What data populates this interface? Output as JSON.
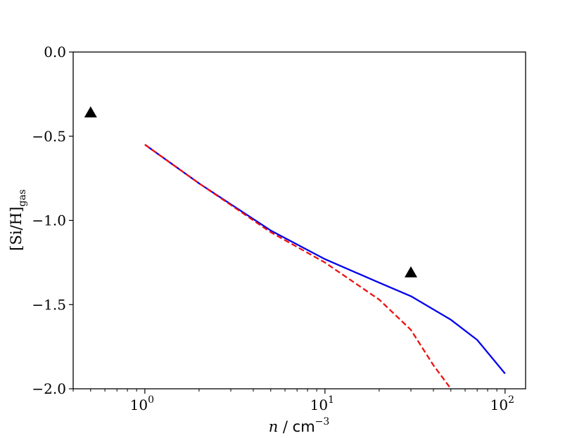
{
  "chart_data": {
    "type": "line",
    "xscale": "log",
    "xlim": [
      0.4,
      130
    ],
    "ylim": [
      -2.0,
      0.0
    ],
    "grid": false,
    "xlabel": {
      "var": "n",
      "sep": " / ",
      "unit": "cm",
      "exp": "−3"
    },
    "ylabel": {
      "main": "[Si/H]",
      "sub": "gas"
    },
    "y_ticks": [
      {
        "value": 0.0,
        "label": "0.0"
      },
      {
        "value": -0.5,
        "label": "−0.5"
      },
      {
        "value": -1.0,
        "label": "−1.0"
      },
      {
        "value": -1.5,
        "label": "−1.5"
      },
      {
        "value": -2.0,
        "label": "−2.0"
      }
    ],
    "x_ticks": [
      {
        "value": 1,
        "base": "10",
        "exp": "0"
      },
      {
        "value": 10,
        "base": "10",
        "exp": "1"
      },
      {
        "value": 100,
        "base": "10",
        "exp": "2"
      }
    ],
    "series": [
      {
        "style": "solid",
        "color": "#0000ee",
        "x": [
          1,
          2,
          5,
          10,
          20,
          30,
          50,
          70,
          100
        ],
        "y": [
          -0.55,
          -0.78,
          -1.06,
          -1.23,
          -1.37,
          -1.45,
          -1.59,
          -1.71,
          -1.91
        ]
      },
      {
        "style": "dashed",
        "color": "#ee1111",
        "x": [
          1,
          2,
          5,
          10,
          20,
          30,
          40,
          50
        ],
        "y": [
          -0.55,
          -0.78,
          -1.07,
          -1.25,
          -1.47,
          -1.65,
          -1.86,
          -2.0
        ]
      }
    ],
    "markers": [
      {
        "shape": "triangle",
        "color": "#000000",
        "x": 0.5,
        "y": -0.36
      },
      {
        "shape": "triangle",
        "color": "#000000",
        "x": 30,
        "y": -1.31
      }
    ]
  }
}
